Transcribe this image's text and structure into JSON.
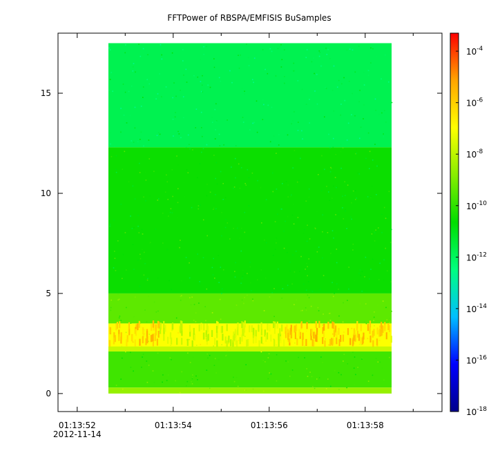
{
  "chart_data": {
    "type": "heatmap",
    "title": "FFTPower of RBSPA/EMFISIS  BuSamples",
    "xlabel": "",
    "ylabel": "",
    "x_ticks": [
      {
        "value": "01:13:52",
        "sublabel": "2012-11-14",
        "seconds": 0
      },
      {
        "value": "01:13:54",
        "sublabel": "",
        "seconds": 2
      },
      {
        "value": "01:13:56",
        "sublabel": "",
        "seconds": 4
      },
      {
        "value": "01:13:58",
        "sublabel": "",
        "seconds": 6
      }
    ],
    "x_minor_tick_seconds": [
      1,
      3,
      5,
      7
    ],
    "xlim_seconds": [
      -0.4,
      7.6
    ],
    "data_x_range_seconds": [
      0.65,
      6.55
    ],
    "y_ticks": [
      0,
      5,
      10,
      15
    ],
    "ylim": [
      -0.9,
      18.0
    ],
    "data_y_range": [
      0,
      17.5
    ],
    "colorbar": {
      "scale": "log",
      "range_exponent": [
        -18,
        -3.3
      ],
      "tick_base": "10",
      "tick_exponents": [
        -4,
        -6,
        -8,
        -10,
        -12,
        -14,
        -16,
        -18
      ],
      "colormap": [
        "#00008b",
        "#0000ff",
        "#00bfff",
        "#00ff80",
        "#00dd00",
        "#88ee00",
        "#ffff00",
        "#ffa500",
        "#ff0000"
      ]
    },
    "bands": [
      {
        "y_from": 12.3,
        "y_to": 17.5,
        "log_power": -11.8
      },
      {
        "y_from": 5.0,
        "y_to": 12.3,
        "log_power": -10.5
      },
      {
        "y_from": 3.5,
        "y_to": 5.0,
        "log_power": -9.4
      },
      {
        "y_from": 2.1,
        "y_to": 3.5,
        "log_power": -7.0
      },
      {
        "y_from": 0.3,
        "y_to": 2.1,
        "log_power": -9.8
      },
      {
        "y_from": 0.0,
        "y_to": 0.3,
        "log_power": -8.6
      }
    ]
  }
}
